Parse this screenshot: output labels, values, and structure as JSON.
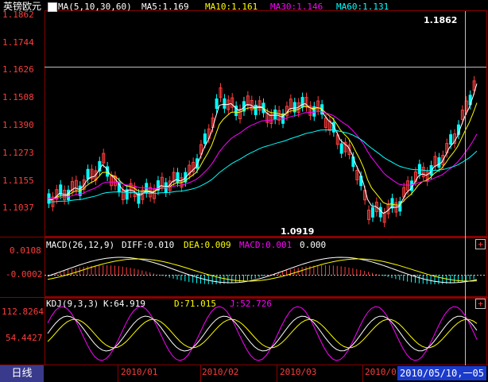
{
  "title_bar": {
    "instrument": "英镑欧元",
    "ma_params": "MA(5,10,30,60)",
    "ma5": "MA5:1.169",
    "ma10": "MA10:1.161",
    "ma30": "MA30:1.146",
    "ma60": "MA60:1.131"
  },
  "price_axis": [
    "1.1862",
    "1.1744",
    "1.1626",
    "1.1508",
    "1.1390",
    "1.1273",
    "1.1155",
    "1.1037"
  ],
  "annotations": {
    "high": "1.1862",
    "low": "1.0919"
  },
  "macd_bar": {
    "params": "MACD(26,12,9)",
    "diff": "DIFF:0.010",
    "dea": "DEA:0.009",
    "macd": "MACD:0.001",
    "extra": "0.000"
  },
  "macd_axis": [
    "0.0108",
    "-0.0002"
  ],
  "kdj_bar": {
    "params": "KDJ(9,3,3)",
    "k": "K:64.919",
    "d": "D:71.015",
    "j": "J:52.726"
  },
  "kdj_axis": [
    "112.8264",
    "54.4427"
  ],
  "date_axis": [
    "2010/01",
    "2010/02",
    "2010/03",
    "2010/0"
  ],
  "cursor_date": "2010/05/10,一",
  "cursor_date_tail": "05",
  "bottom_tab": "日线",
  "panel_button": "+",
  "colors": {
    "up": "#ff3c3c",
    "down": "#00ffff",
    "ma5": "#ffffff",
    "ma10": "#ffff00",
    "ma30": "#ff00ff",
    "ma60": "#00ffff",
    "grid": "#8b0000"
  },
  "icons": {
    "ma_checkbox": "ma-toggle-icon",
    "panel_toggle": "plus-icon"
  }
}
